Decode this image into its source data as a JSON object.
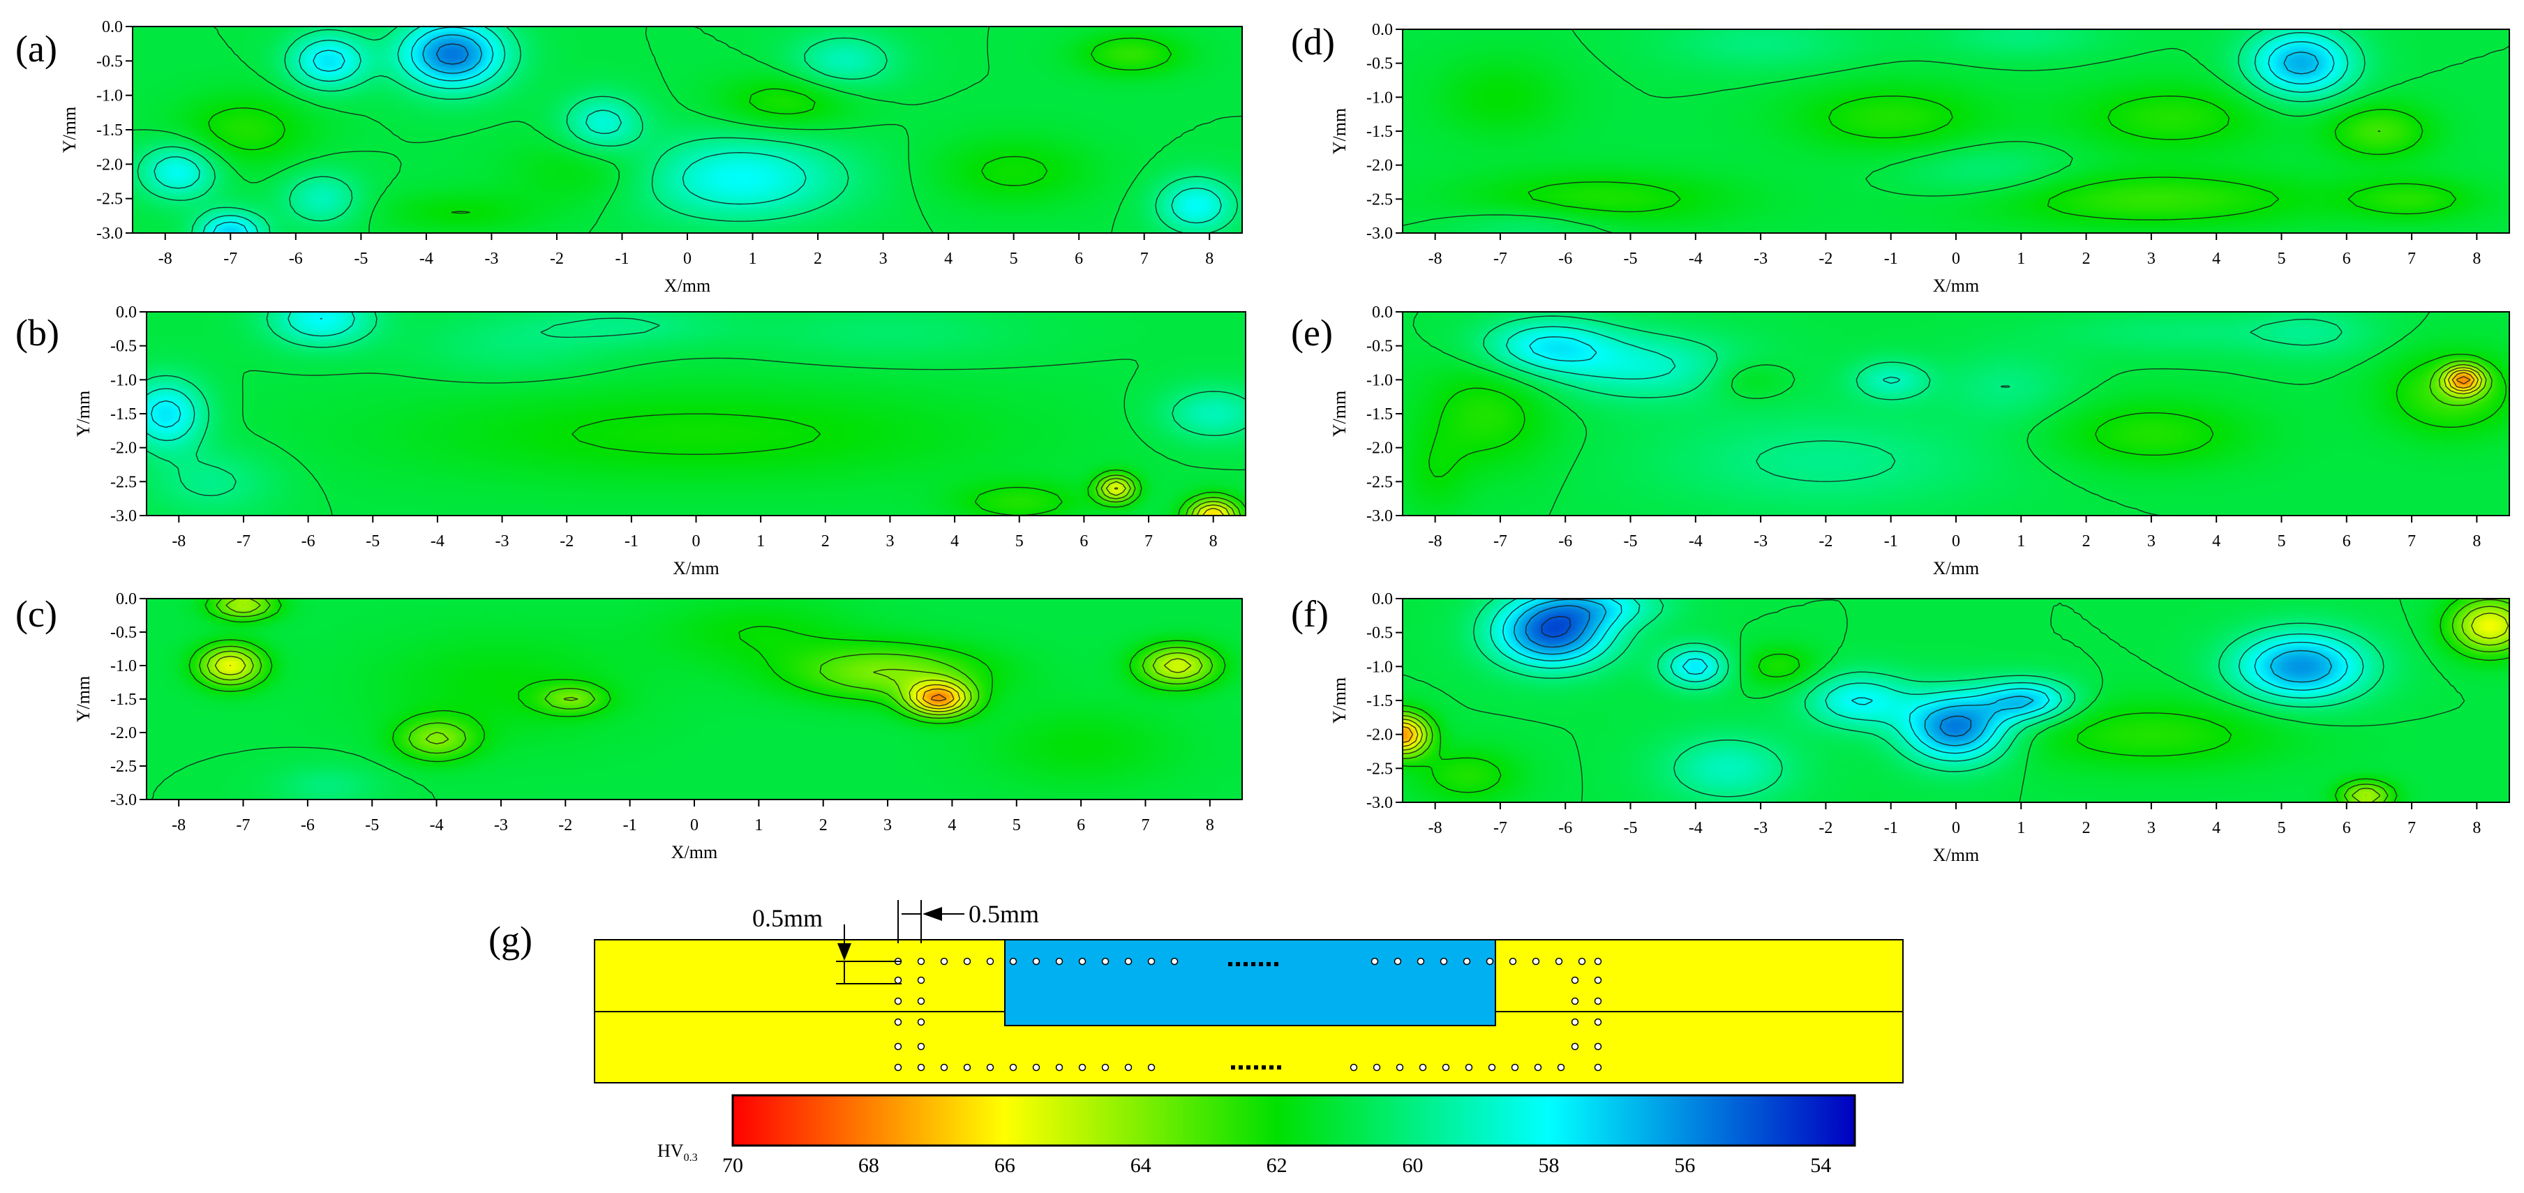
{
  "panels": [
    {
      "id": "a",
      "label": "(a)",
      "xlabel": "X/mm",
      "ylabel": "Y/mm",
      "pattern": "a"
    },
    {
      "id": "b",
      "label": "(b)",
      "xlabel": "X/mm",
      "ylabel": "Y/mm",
      "pattern": "b"
    },
    {
      "id": "c",
      "label": "(c)",
      "xlabel": "X/mm",
      "ylabel": "Y/mm",
      "pattern": "c"
    },
    {
      "id": "d",
      "label": "(d)",
      "xlabel": "X/mm",
      "ylabel": "Y/mm",
      "pattern": "d"
    },
    {
      "id": "e",
      "label": "(e)",
      "xlabel": "X/mm",
      "ylabel": "Y/mm",
      "pattern": "e"
    },
    {
      "id": "f",
      "label": "(f)",
      "xlabel": "X/mm",
      "ylabel": "Y/mm",
      "pattern": "f"
    }
  ],
  "chart_data": {
    "type": "heatmap",
    "xlim": [
      -8.5,
      8.5
    ],
    "ylim": [
      -3.0,
      0.0
    ],
    "xticks": [
      "-8",
      "-7",
      "-6",
      "-5",
      "-4",
      "-3",
      "-2",
      "-1",
      "0",
      "1",
      "2",
      "3",
      "4",
      "5",
      "6",
      "7",
      "8"
    ],
    "yticks": [
      "0.0",
      "-0.5",
      "-1.0",
      "-1.5",
      "-2.0",
      "-2.5",
      "-3.0"
    ],
    "grid": false,
    "colorbar": {
      "label_main": "HV",
      "label_sub": "0.3",
      "ticks": [
        "70",
        "68",
        "66",
        "64",
        "62",
        "60",
        "58",
        "56",
        "54"
      ],
      "range": [
        70,
        53.5
      ],
      "stops": [
        {
          "v": 70,
          "color": "#ff0000"
        },
        {
          "v": 66,
          "color": "#ffff00"
        },
        {
          "v": 62,
          "color": "#00e000"
        },
        {
          "v": 58,
          "color": "#00ffff"
        },
        {
          "v": 53.5,
          "color": "#0000c0"
        }
      ],
      "contour_interval": 1
    },
    "panels": [
      {
        "id": "a",
        "hot": [
          [
            -3.6,
            -0.4,
            0.8,
            0.5,
            -5.5
          ],
          [
            -5.5,
            -0.5,
            0.6,
            0.4,
            -3.5
          ],
          [
            -1.3,
            -1.4,
            0.6,
            0.4,
            -2.5
          ],
          [
            -7.8,
            -2.1,
            0.6,
            0.4,
            -3.0
          ],
          [
            0.8,
            -2.2,
            1.6,
            0.6,
            -3.0
          ],
          [
            7.8,
            -2.6,
            0.6,
            0.4,
            -3.0
          ],
          [
            -7,
            -3,
            0.5,
            0.3,
            -4.0
          ],
          [
            2.4,
            -0.5,
            0.8,
            0.4,
            -2.0
          ],
          [
            -5.6,
            -2.5,
            0.6,
            0.4,
            -2.0
          ],
          [
            1.5,
            -1.1,
            1.0,
            0.4,
            1.5
          ],
          [
            -6.8,
            -1.5,
            1.0,
            0.5,
            1.5
          ],
          [
            6.8,
            -0.4,
            0.8,
            0.3,
            1.8
          ],
          [
            -1.5,
            -2.1,
            1.2,
            0.5,
            1.0
          ],
          [
            5.0,
            -2.1,
            1.2,
            0.5,
            1.2
          ],
          [
            -3.5,
            -2.7,
            1.2,
            0.3,
            1.0
          ]
        ]
      },
      {
        "id": "b",
        "hot": [
          [
            -8.2,
            -1.5,
            0.6,
            0.5,
            -3.5
          ],
          [
            -5.8,
            -0.1,
            0.8,
            0.4,
            -3.0
          ],
          [
            8.0,
            -1.5,
            0.8,
            0.4,
            -2.0
          ],
          [
            8.0,
            -3.0,
            0.4,
            0.25,
            6.0
          ],
          [
            6.5,
            -2.6,
            0.3,
            0.2,
            5.0
          ],
          [
            0.0,
            -1.8,
            4.5,
            0.7,
            1.2
          ],
          [
            3.0,
            -0.3,
            2.0,
            0.4,
            -0.7
          ],
          [
            -7.5,
            -2.5,
            1.0,
            0.5,
            -1.2
          ],
          [
            -1.0,
            -0.2,
            1.5,
            0.3,
            -1.0
          ],
          [
            -2.8,
            -0.5,
            1.5,
            0.5,
            -0.8
          ],
          [
            5.0,
            -2.8,
            1.0,
            0.3,
            1.5
          ]
        ]
      },
      {
        "id": "c",
        "hot": [
          [
            3.8,
            -1.5,
            0.5,
            0.25,
            6.5
          ],
          [
            -7.2,
            -1.0,
            0.5,
            0.3,
            5.0
          ],
          [
            7.5,
            -1.0,
            0.6,
            0.3,
            4.5
          ],
          [
            3.0,
            -1.1,
            1.5,
            0.4,
            3.0
          ],
          [
            -4.0,
            -2.1,
            0.6,
            0.3,
            3.0
          ],
          [
            -1.9,
            -1.5,
            0.5,
            0.2,
            2.5
          ],
          [
            -5.7,
            -2.8,
            0.8,
            0.3,
            -1.0
          ],
          [
            -7,
            -0.1,
            0.5,
            0.2,
            4.0
          ],
          [
            -3,
            -1.3,
            2.0,
            0.8,
            0.9
          ],
          [
            6,
            -2.2,
            1.5,
            0.6,
            0.9
          ],
          [
            1,
            -0.5,
            1.5,
            0.5,
            1.0
          ]
        ]
      },
      {
        "id": "d",
        "hot": [
          [
            5.3,
            -0.5,
            0.8,
            0.5,
            -4.5
          ],
          [
            -1.0,
            -1.3,
            1.5,
            0.5,
            1.5
          ],
          [
            3.3,
            -1.3,
            1.5,
            0.5,
            1.5
          ],
          [
            -5.5,
            -2.5,
            2.0,
            0.4,
            1.5
          ],
          [
            3.0,
            -2.5,
            2.5,
            0.4,
            1.8
          ],
          [
            7.0,
            -2.5,
            1.0,
            0.3,
            1.5
          ],
          [
            6.5,
            -1.5,
            0.8,
            0.4,
            2.0
          ],
          [
            -7.0,
            -1.0,
            1.0,
            0.6,
            1.0
          ],
          [
            0.5,
            -2.1,
            1.3,
            0.4,
            -1.0
          ],
          [
            -3,
            -0.2,
            1.5,
            0.4,
            -1.0
          ],
          [
            -6.5,
            -2.9,
            1.2,
            0.3,
            -1.0
          ],
          [
            1,
            -0.1,
            1.2,
            0.3,
            -1.0
          ]
        ]
      },
      {
        "id": "e",
        "hot": [
          [
            -6.3,
            -0.5,
            1.0,
            0.4,
            -3.0
          ],
          [
            -4.8,
            -0.8,
            1.5,
            0.5,
            -2.2
          ],
          [
            -1.0,
            -1.0,
            0.6,
            0.3,
            -2.0
          ],
          [
            7.8,
            -1.0,
            0.3,
            0.2,
            6.0
          ],
          [
            7.6,
            -1.2,
            1.0,
            0.6,
            2.0
          ],
          [
            -7.2,
            -1.5,
            1.0,
            0.8,
            1.5
          ],
          [
            3.0,
            -1.8,
            1.5,
            0.5,
            1.5
          ],
          [
            -3.2,
            -1.0,
            0.6,
            0.3,
            1.0
          ],
          [
            0.8,
            -1.1,
            1.0,
            0.5,
            -1.0
          ],
          [
            5.5,
            -0.3,
            1.0,
            0.4,
            -1.0
          ],
          [
            -8.0,
            -2.4,
            0.5,
            0.6,
            0.8
          ],
          [
            -2.0,
            -2.2,
            2.5,
            0.7,
            -1.2
          ],
          [
            3.5,
            -0.3,
            2.0,
            0.3,
            -0.8
          ]
        ]
      },
      {
        "id": "f",
        "hot": [
          [
            -6.2,
            -0.5,
            0.9,
            0.5,
            -6.0
          ],
          [
            0.0,
            -1.9,
            0.8,
            0.5,
            -5.5
          ],
          [
            1.1,
            -1.5,
            0.7,
            0.3,
            -4.0
          ],
          [
            5.3,
            -1.0,
            1.0,
            0.5,
            -5.0
          ],
          [
            -1.5,
            -1.5,
            0.8,
            0.4,
            -3.0
          ],
          [
            -4.0,
            -1.0,
            0.5,
            0.3,
            -3.5
          ],
          [
            -8.5,
            -2.0,
            0.4,
            0.3,
            7.0
          ],
          [
            8.2,
            -0.4,
            0.6,
            0.4,
            5.0
          ],
          [
            6.3,
            -2.9,
            0.4,
            0.2,
            4.0
          ],
          [
            -5.5,
            -0.1,
            1.0,
            0.3,
            -2.5
          ],
          [
            -3.5,
            -2.5,
            1.0,
            0.5,
            -2.0
          ],
          [
            -7.5,
            -2.6,
            0.8,
            0.4,
            1.5
          ],
          [
            3.0,
            -2.0,
            2.0,
            0.5,
            1.5
          ],
          [
            -2.7,
            -1.0,
            0.6,
            0.3,
            1.5
          ]
        ]
      }
    ]
  },
  "schematic": {
    "label": "(g)",
    "dim_h_label": "0.5mm",
    "dim_v_label": "0.5mm",
    "base_color": "#ffff00",
    "core_color": "#00b0f0"
  }
}
